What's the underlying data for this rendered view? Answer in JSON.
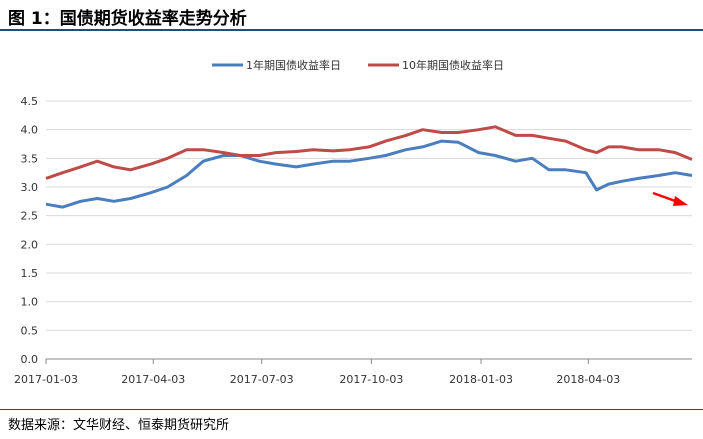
{
  "header": {
    "title": "图 1：国债期货收益率走势分析"
  },
  "footer": {
    "source": "数据来源：文华财经、恒泰期货研究所"
  },
  "colors": {
    "series1": "#4a7ebf",
    "series2": "#be4b48",
    "arrow": "#ff0000",
    "grid": "#d9d9d9",
    "axis": "#888888"
  },
  "chart_data": {
    "type": "line",
    "title": "",
    "xlabel": "",
    "ylabel": "",
    "ylim": [
      0.0,
      4.5
    ],
    "yticks": [
      "4.5",
      "4.0",
      "3.5",
      "3.0",
      "2.5",
      "2.0",
      "1.5",
      "1.0",
      "0.5",
      "0.0"
    ],
    "grid": "horizontal",
    "legend": "top",
    "xticks": [
      "2017-01-03",
      "2017-04-03",
      "2017-07-03",
      "2017-10-03",
      "2018-01-03",
      "2018-04-03"
    ],
    "x": [
      "2017-01-03",
      "2017-01-17",
      "2017-02-01",
      "2017-02-15",
      "2017-03-01",
      "2017-03-15",
      "2017-04-01",
      "2017-04-15",
      "2017-05-01",
      "2017-05-15",
      "2017-06-01",
      "2017-06-15",
      "2017-07-01",
      "2017-07-15",
      "2017-08-01",
      "2017-08-15",
      "2017-09-01",
      "2017-09-15",
      "2017-10-01",
      "2017-10-15",
      "2017-11-01",
      "2017-11-15",
      "2017-12-01",
      "2017-12-15",
      "2018-01-01",
      "2018-01-15",
      "2018-02-01",
      "2018-02-15",
      "2018-03-01",
      "2018-03-15",
      "2018-04-01",
      "2018-04-10",
      "2018-04-20",
      "2018-05-01",
      "2018-05-15",
      "2018-06-01",
      "2018-06-15",
      "2018-06-29"
    ],
    "series": [
      {
        "name": "1年期国债收益率日",
        "values": [
          2.7,
          2.65,
          2.75,
          2.8,
          2.75,
          2.8,
          2.9,
          3.0,
          3.2,
          3.45,
          3.55,
          3.55,
          3.45,
          3.4,
          3.35,
          3.4,
          3.45,
          3.45,
          3.5,
          3.55,
          3.65,
          3.7,
          3.8,
          3.78,
          3.6,
          3.55,
          3.45,
          3.5,
          3.3,
          3.3,
          3.25,
          2.95,
          3.05,
          3.1,
          3.15,
          3.2,
          3.25,
          3.2
        ]
      },
      {
        "name": "10年期国债收益率日",
        "values": [
          3.15,
          3.25,
          3.35,
          3.45,
          3.35,
          3.3,
          3.4,
          3.5,
          3.65,
          3.65,
          3.6,
          3.55,
          3.55,
          3.6,
          3.62,
          3.65,
          3.63,
          3.65,
          3.7,
          3.8,
          3.9,
          4.0,
          3.95,
          3.95,
          4.0,
          4.05,
          3.9,
          3.9,
          3.85,
          3.8,
          3.65,
          3.6,
          3.7,
          3.7,
          3.65,
          3.65,
          3.6,
          3.48
        ]
      }
    ]
  }
}
